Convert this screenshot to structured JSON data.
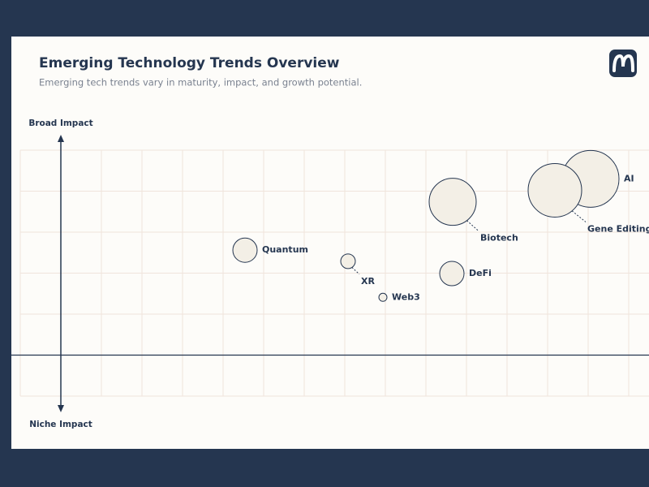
{
  "chart_data": {
    "type": "bubble",
    "title": "Emerging Technology Trends Overview",
    "subtitle": "Emerging tech trends vary in maturity, impact, and growth potential.",
    "y_label_top": "Broad Impact",
    "y_label_bottom": "Niche Impact",
    "categories": [
      "AI",
      "Gene Editing",
      "Biotech",
      "Quantum",
      "XR",
      "DeFi",
      "Web3"
    ],
    "x": [
      14.06,
      13.18,
      10.66,
      5.54,
      8.08,
      10.64,
      8.94
    ],
    "values": [
      4.3,
      4.02,
      3.74,
      2.56,
      2.29,
      1.99,
      1.41
    ],
    "sizes": [
      35,
      33,
      29,
      15,
      9,
      15,
      5
    ],
    "color": "#f3efe6",
    "edge_color": "#253650",
    "xlim": [
      0,
      15.5
    ],
    "ylim": [
      -1,
      5
    ],
    "xticks": [
      0,
      1,
      2,
      3,
      4,
      5,
      6,
      7,
      8,
      9,
      10,
      11,
      12,
      13,
      14,
      15
    ],
    "yticks": [
      -1,
      0,
      1,
      2,
      3,
      4,
      5
    ],
    "grid": true
  }
}
